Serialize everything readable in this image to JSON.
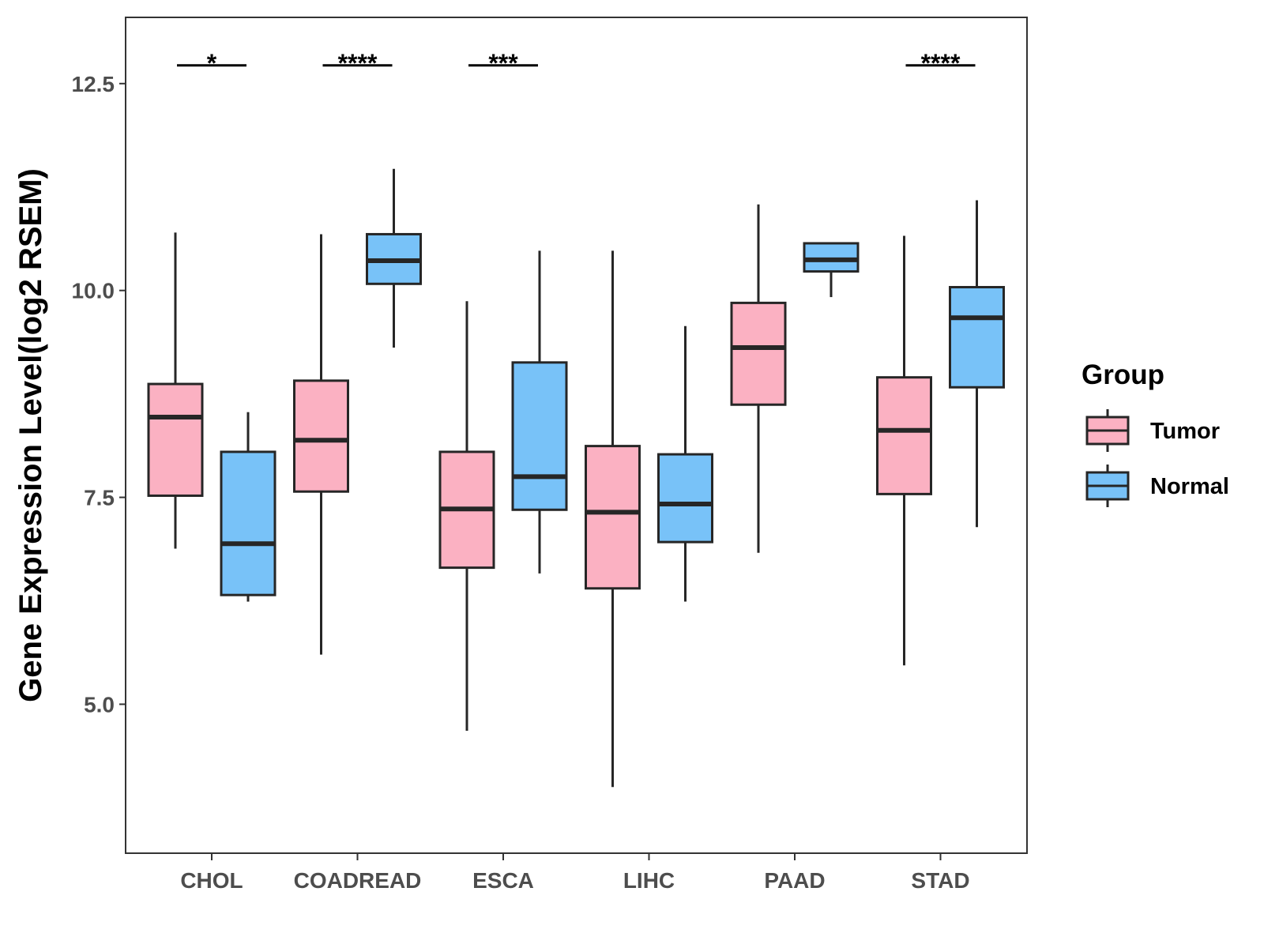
{
  "chart_data": {
    "type": "boxplot",
    "title": "",
    "xlabel": "",
    "ylabel": "Gene Expression Level(log2 RSEM)",
    "ylim": [
      3.2,
      13.3
    ],
    "yticks": [
      "5.0",
      "7.5",
      "10.0",
      "12.5"
    ],
    "ytick_values": [
      5.0,
      7.5,
      10.0,
      12.5
    ],
    "categories": [
      "CHOL",
      "COADREAD",
      "ESCA",
      "LIHC",
      "PAAD",
      "STAD"
    ],
    "legend": {
      "title": "Group",
      "position": "right",
      "items": [
        {
          "name": "Tumor",
          "color": "#fbb1c2"
        },
        {
          "name": "Normal",
          "color": "#78c2f8"
        }
      ]
    },
    "series": [
      {
        "name": "Tumor",
        "color": "#fbb1c2",
        "boxes": [
          {
            "category": "CHOL",
            "min": 6.88,
            "q1": 7.52,
            "median": 8.47,
            "q3": 8.87,
            "max": 10.7
          },
          {
            "category": "COADREAD",
            "min": 5.6,
            "q1": 7.57,
            "median": 8.19,
            "q3": 8.91,
            "max": 10.68
          },
          {
            "category": "ESCA",
            "min": 4.68,
            "q1": 6.65,
            "median": 7.36,
            "q3": 8.05,
            "max": 9.87
          },
          {
            "category": "LIHC",
            "min": 4.0,
            "q1": 6.4,
            "median": 7.32,
            "q3": 8.12,
            "max": 10.48
          },
          {
            "category": "PAAD",
            "min": 6.83,
            "q1": 8.62,
            "median": 9.31,
            "q3": 9.85,
            "max": 11.04
          },
          {
            "category": "STAD",
            "min": 5.47,
            "q1": 7.54,
            "median": 8.31,
            "q3": 8.95,
            "max": 10.66
          }
        ]
      },
      {
        "name": "Normal",
        "color": "#78c2f8",
        "boxes": [
          {
            "category": "CHOL",
            "min": 6.24,
            "q1": 6.32,
            "median": 6.94,
            "q3": 8.05,
            "max": 8.53
          },
          {
            "category": "COADREAD",
            "min": 9.31,
            "q1": 10.08,
            "median": 10.36,
            "q3": 10.68,
            "max": 11.47
          },
          {
            "category": "ESCA",
            "min": 6.58,
            "q1": 7.35,
            "median": 7.75,
            "q3": 9.13,
            "max": 10.48
          },
          {
            "category": "LIHC",
            "min": 6.24,
            "q1": 6.96,
            "median": 7.42,
            "q3": 8.02,
            "max": 9.57
          },
          {
            "category": "PAAD",
            "min": 9.92,
            "q1": 10.23,
            "median": 10.37,
            "q3": 10.57,
            "max": 10.57
          },
          {
            "category": "STAD",
            "min": 7.14,
            "q1": 8.83,
            "median": 9.67,
            "q3": 10.04,
            "max": 11.09
          }
        ]
      }
    ],
    "significance": [
      {
        "category": "CHOL",
        "label": "*"
      },
      {
        "category": "COADREAD",
        "label": "****"
      },
      {
        "category": "ESCA",
        "label": "***"
      },
      {
        "category": "STAD",
        "label": "****"
      }
    ],
    "significance_y": 12.72
  }
}
